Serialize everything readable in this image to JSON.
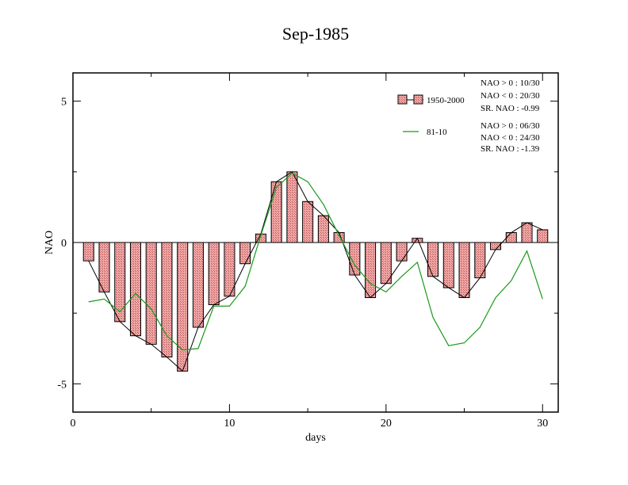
{
  "chart_data": {
    "type": "bar",
    "title": "Sep-1985",
    "xlabel": "days",
    "ylabel": "NAO",
    "xlim": [
      0,
      31
    ],
    "ylim": [
      -6,
      6
    ],
    "xticks": [
      0,
      10,
      20,
      30
    ],
    "xtick_labels": [
      "0",
      "10",
      "20",
      "30"
    ],
    "yticks": [
      -5,
      0,
      5
    ],
    "ytick_labels": [
      "-5",
      "0",
      "5"
    ],
    "x": [
      1,
      2,
      3,
      4,
      5,
      6,
      7,
      8,
      9,
      10,
      11,
      12,
      13,
      14,
      15,
      16,
      17,
      18,
      19,
      20,
      21,
      22,
      23,
      24,
      25,
      26,
      27,
      28,
      29,
      30
    ],
    "series": [
      {
        "name": "1950-2000",
        "kind": "bar+line",
        "color": "#e89a9a",
        "values": [
          -0.65,
          -1.75,
          -2.8,
          -3.3,
          -3.6,
          -4.05,
          -4.55,
          -3.0,
          -2.2,
          -1.9,
          -0.75,
          0.3,
          2.15,
          2.5,
          1.45,
          0.95,
          0.35,
          -1.15,
          -1.95,
          -1.45,
          -0.65,
          0.15,
          -1.2,
          -1.6,
          -1.95,
          -1.25,
          -0.25,
          0.35,
          0.7,
          0.45
        ]
      },
      {
        "name": "81-10",
        "kind": "line",
        "color": "#1a9a1a",
        "values": [
          -2.1,
          -2.0,
          -2.45,
          -1.8,
          -2.35,
          -3.3,
          -3.8,
          -3.75,
          -2.25,
          -2.25,
          -1.55,
          0.25,
          1.95,
          2.45,
          2.15,
          1.35,
          0.25,
          -0.8,
          -1.45,
          -1.75,
          -1.2,
          -0.7,
          -2.65,
          -3.65,
          -3.55,
          -3.0,
          -1.95,
          -1.35,
          -0.3,
          -2.0
        ]
      }
    ],
    "legend_position": "top-right",
    "stats_1950_2000": [
      "NAO > 0 : 10/30",
      "NAO < 0 : 20/30",
      "SR. NAO : -0.99"
    ],
    "stats_81_10": [
      "NAO > 0 : 06/30",
      "NAO < 0 : 24/30",
      "SR. NAO : -1.39"
    ]
  }
}
